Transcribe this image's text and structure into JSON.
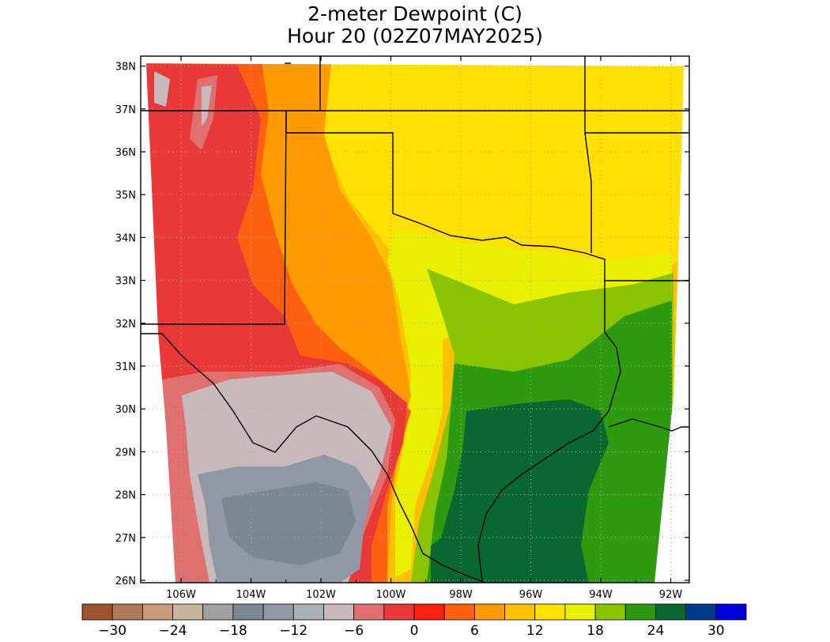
{
  "title": {
    "line1": "2-meter Dewpoint (C)",
    "line2": "Hour 20 (02Z07MAY2025)"
  },
  "map": {
    "lat_ticks": [
      "26N",
      "27N",
      "28N",
      "29N",
      "30N",
      "31N",
      "32N",
      "33N",
      "34N",
      "35N",
      "36N",
      "37N",
      "38N"
    ],
    "lon_ticks": [
      "106W",
      "104W",
      "102W",
      "100W",
      "98W",
      "96W",
      "94W",
      "92W"
    ],
    "gridlines": true
  },
  "colorbar": {
    "labels": [
      "-30",
      "-24",
      "-18",
      "-12",
      "-6",
      "0",
      "6",
      "12",
      "18",
      "24",
      "30"
    ],
    "colors": [
      "#a0522d",
      "#b07a5a",
      "#c89a78",
      "#c8b49a",
      "#a0a0a0",
      "#7c8794",
      "#8f98a4",
      "#aab0ba",
      "#c8babc",
      "#e07070",
      "#e83838",
      "#ff2010",
      "#ff6010",
      "#ff9a00",
      "#ffc000",
      "#ffe000",
      "#e8f000",
      "#88c400",
      "#2e9a10",
      "#086830",
      "#003a8c",
      "#0000dc"
    ]
  },
  "field_colors": {
    "cold_gray": "#8f98a4",
    "light_gray": "#c8babc",
    "pink": "#e07070",
    "red": "#e83838",
    "orange_red": "#ff6010",
    "orange": "#ff9a00",
    "amber": "#ffc000",
    "yellow": "#ffe000",
    "yellow_green": "#e8f000",
    "green": "#88c400",
    "mid_green": "#2e9a10",
    "dark_green": "#086830"
  }
}
